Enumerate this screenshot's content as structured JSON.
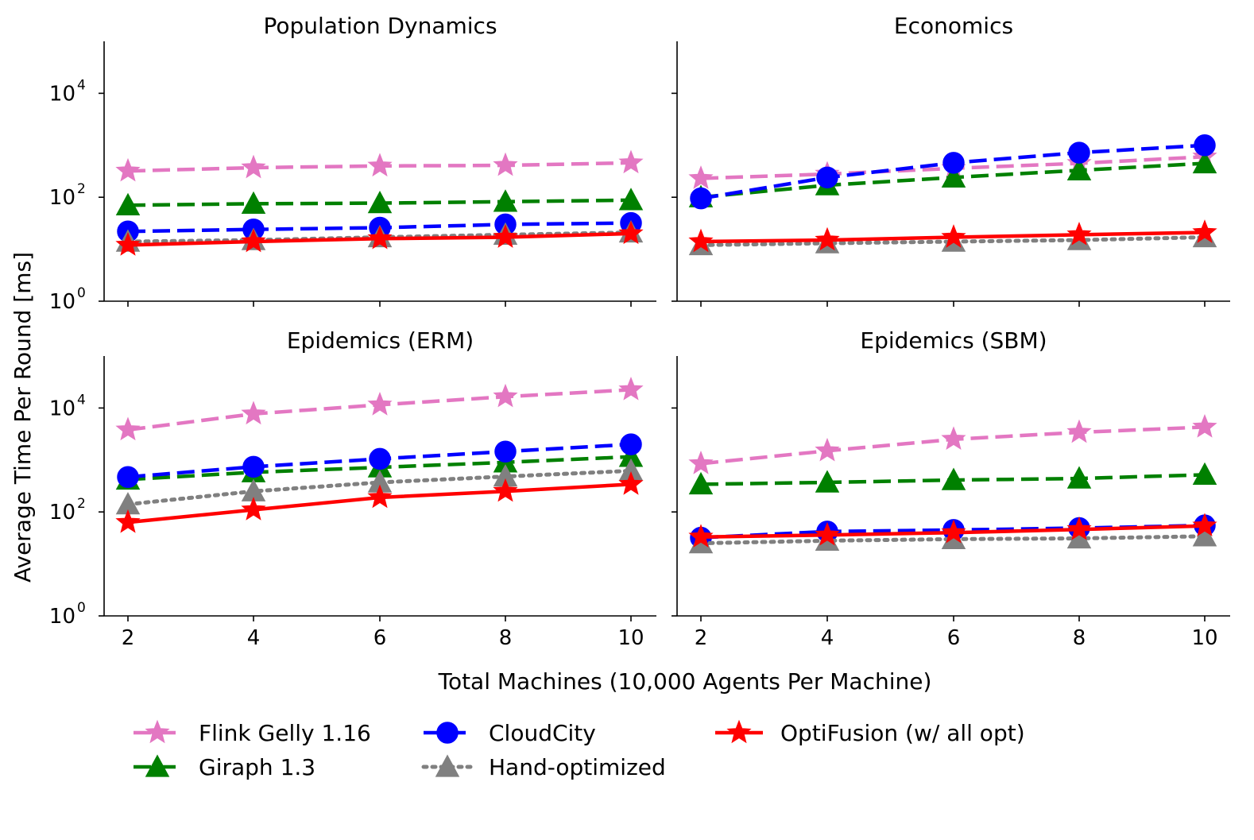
{
  "chart_data": {
    "type": "line",
    "ylabel": "Average Time Per Round [ms]",
    "xlabel": "Total Machines (10,000 Agents Per Machine)",
    "x": [
      2,
      4,
      6,
      8,
      10
    ],
    "y_scale": "log",
    "ylim": [
      1,
      100000
    ],
    "y_ticks": [
      {
        "base": "10",
        "exp": "0"
      },
      {
        "base": "10",
        "exp": "2"
      },
      {
        "base": "10",
        "exp": "4"
      }
    ],
    "y_tick_values": [
      1,
      100,
      10000
    ],
    "x_tick_labels": [
      "2",
      "4",
      "6",
      "8",
      "10"
    ],
    "series_styles": {
      "Flink Gelly 1.16": {
        "color": "#e377c2",
        "marker": "star",
        "dash": "dashed"
      },
      "Giraph 1.3": {
        "color": "#008000",
        "marker": "triangle",
        "dash": "dashed"
      },
      "CloudCity": {
        "color": "#0000ff",
        "marker": "circle",
        "dash": "dashed"
      },
      "Hand-optimized": {
        "color": "#808080",
        "marker": "triangle",
        "dash": "dotted"
      },
      "OptiFusion (w/ all opt)": {
        "color": "#ff0000",
        "marker": "star",
        "dash": "solid"
      }
    },
    "legend": [
      {
        "name": "Flink Gelly 1.16"
      },
      {
        "name": "Giraph 1.3"
      },
      {
        "name": "CloudCity"
      },
      {
        "name": "Hand-optimized"
      },
      {
        "name": "OptiFusion (w/ all opt)"
      }
    ],
    "panels": [
      {
        "title": "Population Dynamics",
        "series": [
          {
            "name": "Flink Gelly 1.16",
            "values": [
              320,
              370,
              400,
              410,
              460
            ]
          },
          {
            "name": "Giraph 1.3",
            "values": [
              70,
              75,
              77,
              82,
              88
            ]
          },
          {
            "name": "CloudCity",
            "values": [
              22,
              24,
              26,
              30,
              32
            ]
          },
          {
            "name": "Hand-optimized",
            "values": [
              14,
              15,
              17,
              19,
              21
            ]
          },
          {
            "name": "OptiFusion (w/ all opt)",
            "values": [
              12,
              14,
              16,
              17,
              20
            ]
          }
        ]
      },
      {
        "title": "Economics",
        "series": [
          {
            "name": "Flink Gelly 1.16",
            "values": [
              230,
              280,
              360,
              450,
              600
            ]
          },
          {
            "name": "Giraph 1.3",
            "values": [
              100,
              170,
              240,
              330,
              450
            ]
          },
          {
            "name": "CloudCity",
            "values": [
              95,
              240,
              460,
              720,
              1000
            ]
          },
          {
            "name": "Hand-optimized",
            "values": [
              12,
              13,
              14,
              15,
              17
            ]
          },
          {
            "name": "OptiFusion (w/ all opt)",
            "values": [
              14,
              15,
              17,
              19,
              21
            ]
          }
        ]
      },
      {
        "title": "Epidemics (ERM)",
        "series": [
          {
            "name": "Flink Gelly 1.16",
            "values": [
              3800,
              7700,
              11500,
              16500,
              22500
            ]
          },
          {
            "name": "Giraph 1.3",
            "values": [
              420,
              580,
              720,
              900,
              1150
            ]
          },
          {
            "name": "CloudCity",
            "values": [
              470,
              740,
              1050,
              1450,
              2000
            ]
          },
          {
            "name": "Hand-optimized",
            "values": [
              140,
              250,
              370,
              480,
              620
            ]
          },
          {
            "name": "OptiFusion (w/ all opt)",
            "values": [
              63,
              110,
              190,
              250,
              340
            ]
          }
        ]
      },
      {
        "title": "Epidemics (SBM)",
        "series": [
          {
            "name": "Flink Gelly 1.16",
            "values": [
              850,
              1500,
              2500,
              3400,
              4300
            ]
          },
          {
            "name": "Giraph 1.3",
            "values": [
              340,
              370,
              410,
              440,
              520
            ]
          },
          {
            "name": "CloudCity",
            "values": [
              32,
              42,
              45,
              49,
              55
            ]
          },
          {
            "name": "Hand-optimized",
            "values": [
              25,
              28,
              30,
              31,
              34
            ]
          },
          {
            "name": "OptiFusion (w/ all opt)",
            "values": [
              33,
              36,
              40,
              46,
              54
            ]
          }
        ]
      }
    ]
  }
}
